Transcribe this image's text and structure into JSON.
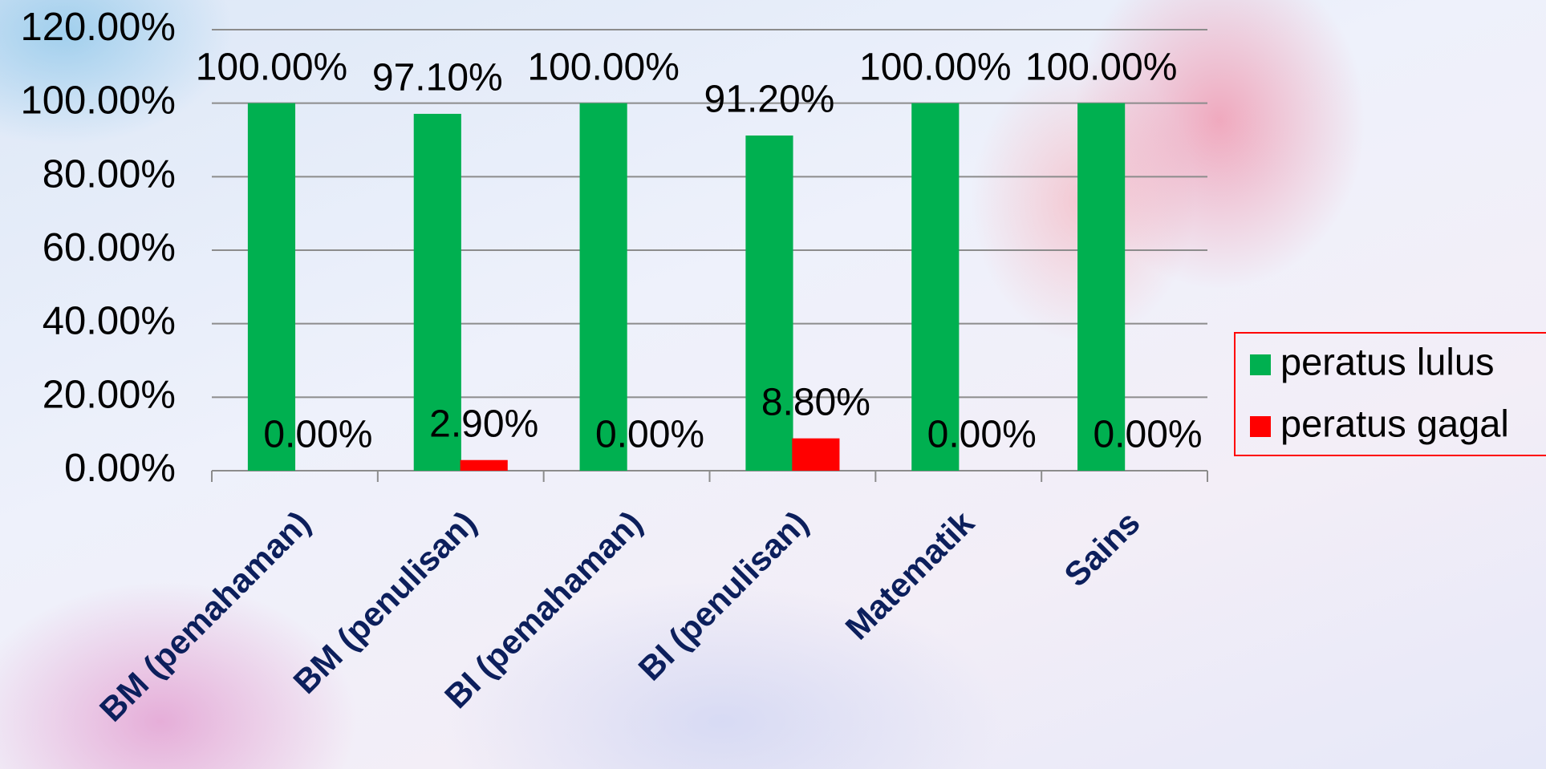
{
  "chart_data": {
    "type": "bar",
    "categories": [
      "BM (pemahaman)",
      "BM (penulisan)",
      "BI (pemahaman)",
      "BI (penulisan)",
      "Matematik",
      "Sains"
    ],
    "series": [
      {
        "name": "peratus lulus",
        "color": "#00b050",
        "values": [
          100,
          97.1,
          100,
          91.2,
          100,
          100
        ],
        "value_labels": [
          "100.00%",
          "97.10%",
          "100.00%",
          "91.20%",
          "100.00%",
          "100.00%"
        ]
      },
      {
        "name": "peratus gagal",
        "color": "#ff0000",
        "values": [
          0,
          2.9,
          0,
          8.8,
          0,
          0
        ],
        "value_labels": [
          "0.00%",
          "2.90%",
          "0.00%",
          "8.80%",
          "0.00%",
          "0.00%"
        ]
      }
    ],
    "ylim": [
      0,
      120
    ],
    "yticks": [
      {
        "value": 0,
        "label": "0.00%"
      },
      {
        "value": 20,
        "label": "20.00%"
      },
      {
        "value": 40,
        "label": "40.00%"
      },
      {
        "value": 60,
        "label": "60.00%"
      },
      {
        "value": 80,
        "label": "80.00%"
      },
      {
        "value": 100,
        "label": "100.00%"
      },
      {
        "value": 120,
        "label": "120.00%"
      }
    ],
    "grid": true,
    "legend": "right"
  }
}
